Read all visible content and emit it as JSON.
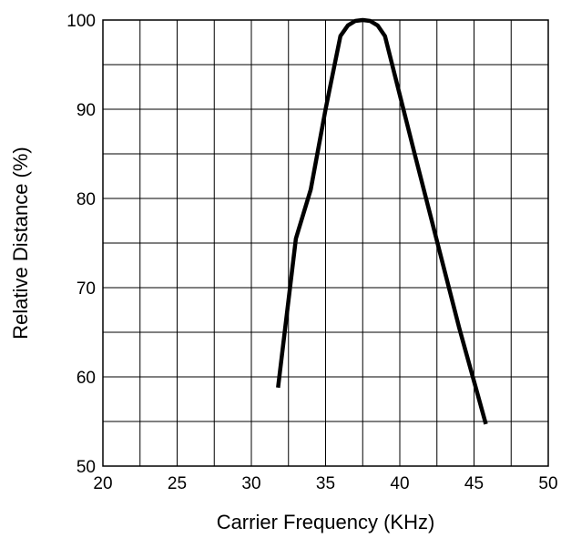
{
  "chart_data": {
    "type": "line",
    "xlabel": "Carrier Frequency (KHz)",
    "ylabel": "Relative Distance (%)",
    "xlim": [
      20,
      50
    ],
    "ylim": [
      50,
      100
    ],
    "x_ticks": [
      20,
      25,
      30,
      35,
      40,
      45,
      50
    ],
    "y_ticks": [
      50,
      60,
      70,
      80,
      90,
      100
    ],
    "x_minor_step": 2.5,
    "y_minor_step": 5,
    "grid": true,
    "line_color": "#000000",
    "series": [
      {
        "x": [
          31.8,
          33.0,
          34.0,
          35.0,
          36.0,
          36.5,
          37.0,
          37.5,
          38.0,
          38.5,
          39.0,
          40.0,
          41.0,
          42.0,
          43.0,
          44.0,
          45.0,
          45.8
        ],
        "y": [
          58.8,
          75.5,
          81.0,
          90.0,
          98.2,
          99.4,
          99.9,
          100.0,
          99.9,
          99.4,
          98.2,
          91.6,
          85.0,
          78.5,
          72.0,
          65.5,
          59.5,
          54.7
        ]
      }
    ]
  }
}
